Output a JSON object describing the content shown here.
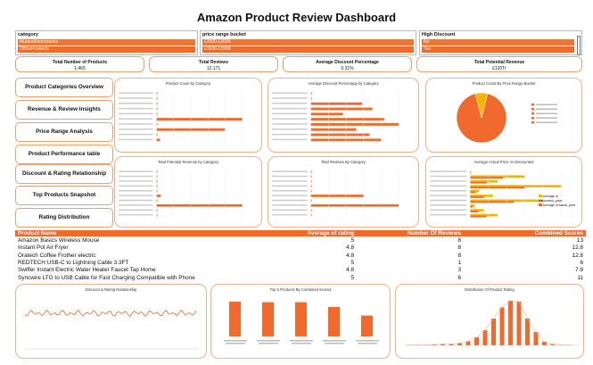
{
  "title": "Amazon Product Review Dashboard",
  "slicers": [
    {
      "header": "category",
      "options": [
        "MusicalInstruments",
        "OfficeProducts"
      ]
    },
    {
      "header": "price range bucket",
      "options": [
        "£2000-£3999",
        "£3000-£3999"
      ]
    },
    {
      "header": "High Discount",
      "options": [
        "No",
        "Yes"
      ]
    }
  ],
  "kpis": [
    {
      "label": "Total Number of Products",
      "value": "1,465"
    },
    {
      "label": "Total Reviews",
      "value": "12,171"
    },
    {
      "label": "Average Discount Percentage",
      "value": "0.31%"
    },
    {
      "label": "Total Potential Revenue",
      "value": "£120Tr"
    }
  ],
  "nav": [
    "Product Categories Overview",
    "Revenue & Review Insights",
    "Price Range Analysis",
    "Product Performance table",
    "Discount & Rating Relationship",
    "Top Products Snapshot",
    "Rating Distribution"
  ],
  "charts": {
    "count": "Product Count by Category",
    "discount": "Average Discount Percentage by Category",
    "pie": "Product Count By Price Range Bucket",
    "revenue": "Total Potential Revenue by Category",
    "reviews": "Total Reviews By Category",
    "actual": "Average Actual Price Vs Discounted",
    "relationship": "Discount & Rating Relationship",
    "top5": "Top 5 Products By Combined Scored",
    "dist": "Distribution Of Product Rating"
  },
  "legend_actual": [
    "Average of discounted_price",
    "Average of actual_price"
  ],
  "table": {
    "headers": [
      "Product Name",
      "Average of rating",
      "Number Of Reviews",
      "Combined Scores"
    ],
    "rows": [
      [
        "Amazon Basics Wireless Mouse",
        "5",
        "8",
        "13"
      ],
      [
        "Instant Pot Air Fryer",
        "4.8",
        "8",
        "12.8"
      ],
      [
        "Oratech Coffee Frother electric",
        "4.8",
        "8",
        "12.8"
      ],
      [
        "REDTECH USB-C to Lightning Cable 3.3FT",
        "5",
        "1",
        "6"
      ],
      [
        "Swiffer Instant Electric Water Heater Faucet Tap Home",
        "4.8",
        "3",
        "7.8"
      ],
      [
        "Syncwire LTG to USB Cable for Fast Charging Compatible with Phone",
        "5",
        "6",
        "11"
      ]
    ]
  },
  "chart_data": [
    {
      "type": "bar",
      "title": "Top 5 Products By Combined Scored",
      "values": [
        13,
        12.8,
        12.8,
        11,
        7.8
      ]
    },
    {
      "type": "bar",
      "title": "Distribution Of Product Rating",
      "values": [
        1,
        1,
        1,
        2,
        3,
        3,
        5,
        9,
        18,
        34,
        60,
        85,
        100,
        98,
        60,
        30,
        8,
        3,
        1,
        1
      ]
    },
    {
      "type": "line",
      "title": "Discount & Rating Relationship"
    },
    {
      "type": "pie",
      "title": "Product Count By Price Range Bucket",
      "values": [
        92,
        8
      ]
    },
    {
      "type": "bar",
      "title": "Product Count by Category",
      "values": [
        1,
        1,
        4,
        1,
        2,
        440,
        1,
        350,
        2,
        18
      ]
    },
    {
      "type": "bar",
      "title": "Average Discount Percentage by Category",
      "values": [
        0,
        0,
        35,
        42,
        22,
        50,
        60,
        31,
        40,
        48
      ]
    },
    {
      "type": "bar",
      "title": "Total Potential Revenue by Category",
      "values": [
        0,
        0,
        1,
        1,
        0,
        5,
        0,
        100,
        0,
        1
      ]
    },
    {
      "type": "bar",
      "title": "Total Reviews By Category",
      "values": [
        0,
        1,
        0,
        0,
        2,
        3000,
        0,
        5000,
        1,
        0
      ]
    },
    {
      "type": "bar",
      "title": "Average Actual Price Vs Discounted",
      "values": [
        0,
        60,
        30,
        100,
        10,
        25,
        80,
        5,
        15,
        30
      ]
    }
  ]
}
